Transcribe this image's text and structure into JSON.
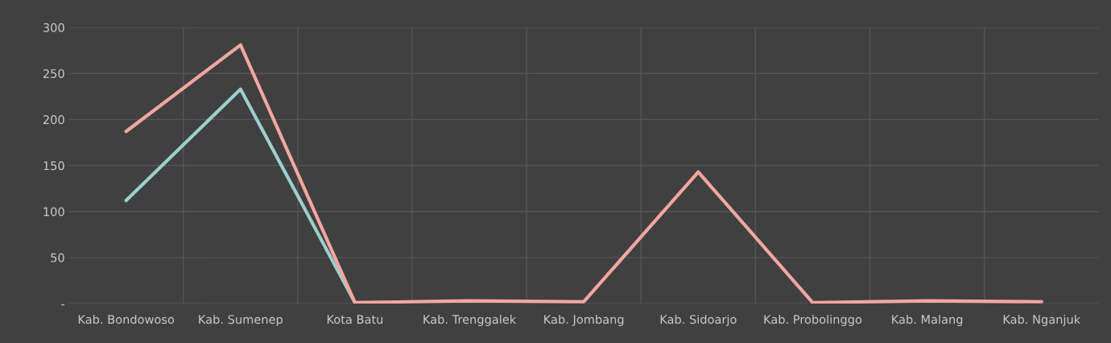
{
  "chart_data": {
    "type": "line",
    "categories": [
      "Kab. Bondowoso",
      "Kab. Sumenep",
      "Kota Batu",
      "Kab. Trenggalek",
      "Kab. Jombang",
      "Kab. Sidoarjo",
      "Kab. Probolinggo",
      "Kab. Malang",
      "Kab. Nganjuk"
    ],
    "series": [
      {
        "color": "#9ccfcc",
        "values": [
          112,
          233,
          1,
          null,
          null,
          null,
          null,
          null,
          null
        ]
      },
      {
        "color": "#f4a6a0",
        "values": [
          187,
          281,
          1,
          3,
          2,
          143,
          1,
          3,
          2
        ]
      }
    ],
    "ylim": [
      0,
      300
    ],
    "yticks": [
      {
        "value": 0,
        "label": "-"
      },
      50,
      100,
      150,
      200,
      250,
      300
    ],
    "grid": true,
    "marker": "none",
    "line_style": "solid"
  }
}
